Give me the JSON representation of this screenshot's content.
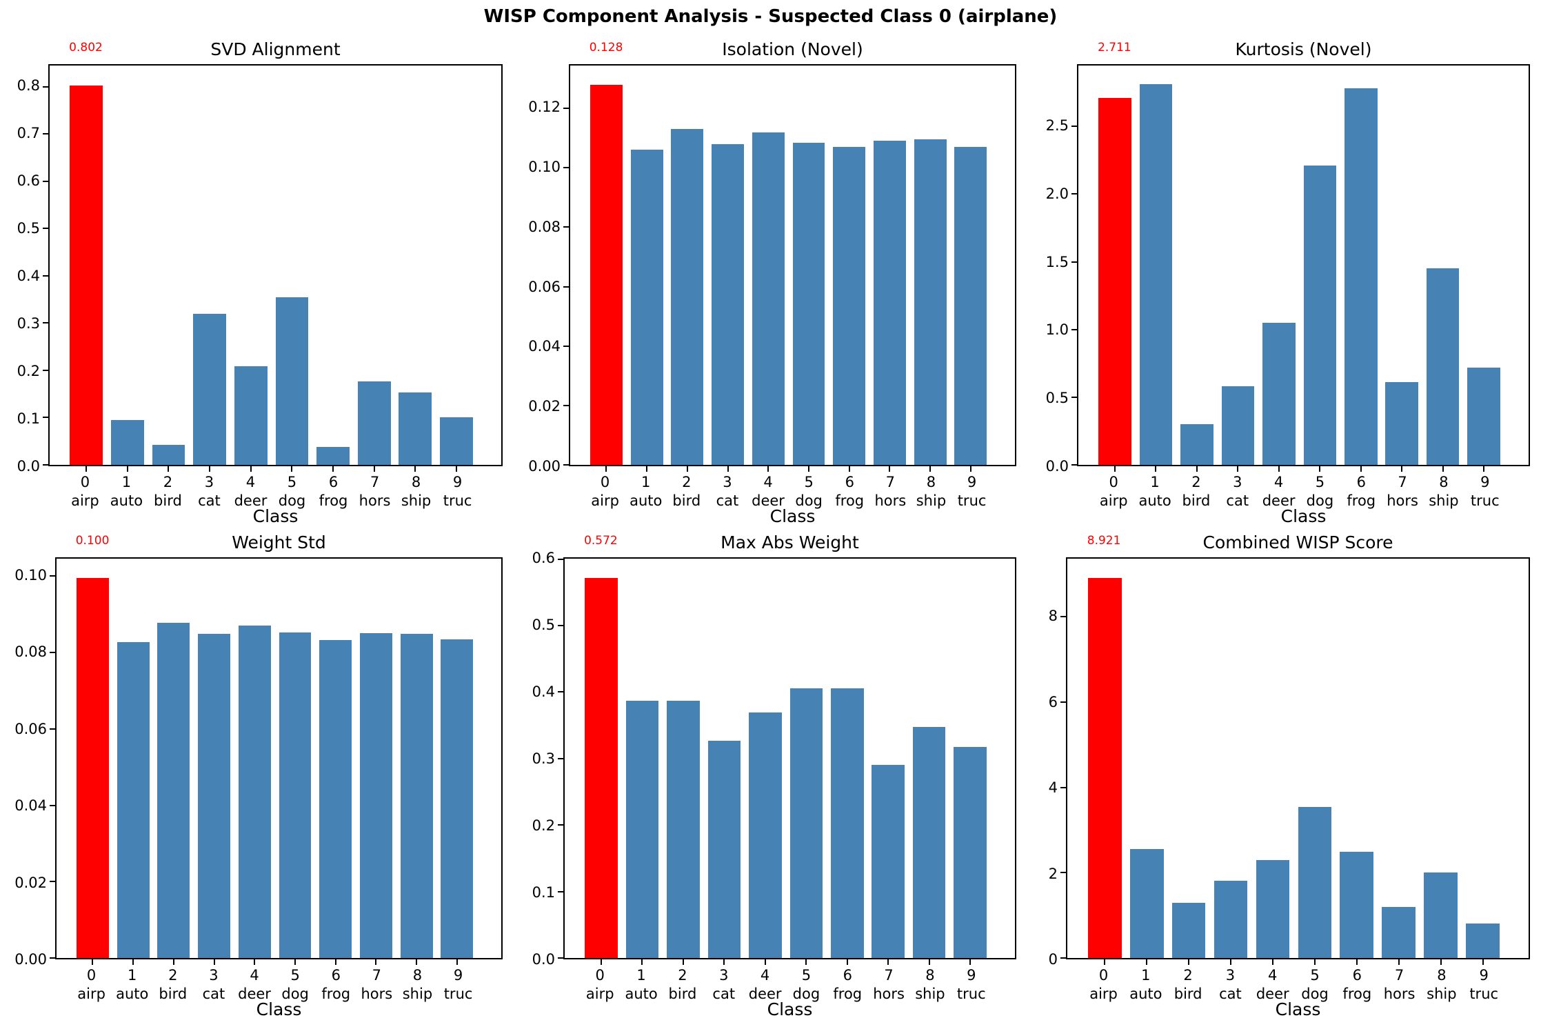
{
  "figure": {
    "title": "WISP Component Analysis - Suspected Class 0 (airplane)"
  },
  "colors": {
    "suspect_bar": "#ff0000",
    "normal_bar": "#4682b4",
    "annotation_text": "#ff0000",
    "axis": "#000000",
    "background": "#ffffff"
  },
  "chart_data": {
    "type": "bar",
    "grid": "2 rows x 3 columns",
    "xlabel": "Class",
    "categories_line1": [
      "0",
      "1",
      "2",
      "3",
      "4",
      "5",
      "6",
      "7",
      "8",
      "9"
    ],
    "categories_line2": [
      "airp",
      "auto",
      "bird",
      "cat",
      "deer",
      "dog",
      "frog",
      "hors",
      "ship",
      "truc"
    ],
    "highlight_index": 0,
    "highlight_color": "#ff0000",
    "bar_color": "#4682b4",
    "charts": [
      {
        "title": "SVD Alignment",
        "annotation": "0.802",
        "values": [
          0.802,
          0.095,
          0.043,
          0.32,
          0.209,
          0.354,
          0.038,
          0.177,
          0.153,
          0.1
        ],
        "ymax": 0.845,
        "ytick_values": [
          0.0,
          0.1,
          0.2,
          0.3,
          0.4,
          0.5,
          0.6,
          0.7,
          0.8
        ],
        "ytick_labels": [
          "0.0",
          "0.1",
          "0.2",
          "0.3",
          "0.4",
          "0.5",
          "0.6",
          "0.7",
          "0.8"
        ]
      },
      {
        "title": "Isolation (Novel)",
        "annotation": "0.128",
        "values": [
          0.128,
          0.106,
          0.113,
          0.108,
          0.112,
          0.1085,
          0.107,
          0.109,
          0.1095,
          0.107
        ],
        "ymax": 0.1344,
        "ytick_values": [
          0.0,
          0.02,
          0.04,
          0.06,
          0.08,
          0.1,
          0.12
        ],
        "ytick_labels": [
          "0.00",
          "0.02",
          "0.04",
          "0.06",
          "0.08",
          "0.10",
          "0.12"
        ]
      },
      {
        "title": "Kurtosis (Novel)",
        "annotation": "2.711",
        "values": [
          2.711,
          2.81,
          0.3,
          0.58,
          1.05,
          2.21,
          2.78,
          0.61,
          1.45,
          0.72
        ],
        "ymax": 2.95,
        "ytick_values": [
          0.0,
          0.5,
          1.0,
          1.5,
          2.0,
          2.5
        ],
        "ytick_labels": [
          "0.0",
          "0.5",
          "1.0",
          "1.5",
          "2.0",
          "2.5"
        ]
      },
      {
        "title": "Weight Std",
        "annotation": "0.100",
        "values": [
          0.0996,
          0.0827,
          0.0878,
          0.0849,
          0.0871,
          0.0853,
          0.0833,
          0.0851,
          0.0849,
          0.0835
        ],
        "ymax": 0.1046,
        "ytick_values": [
          0.0,
          0.02,
          0.04,
          0.06,
          0.08,
          0.1
        ],
        "ytick_labels": [
          "0.00",
          "0.02",
          "0.04",
          "0.06",
          "0.08",
          "0.10"
        ]
      },
      {
        "title": "Max Abs Weight",
        "annotation": "0.572",
        "values": [
          0.572,
          0.387,
          0.387,
          0.327,
          0.369,
          0.406,
          0.406,
          0.29,
          0.347,
          0.317
        ],
        "ymax": 0.6006,
        "ytick_values": [
          0.0,
          0.1,
          0.2,
          0.3,
          0.4,
          0.5,
          0.6
        ],
        "ytick_labels": [
          "0.0",
          "0.1",
          "0.2",
          "0.3",
          "0.4",
          "0.5",
          "0.6"
        ]
      },
      {
        "title": "Combined WISP Score",
        "annotation": "8.921",
        "values": [
          8.921,
          2.56,
          1.3,
          1.81,
          2.3,
          3.54,
          2.49,
          1.19,
          2.01,
          0.81
        ],
        "ymax": 9.367,
        "ytick_values": [
          0,
          2,
          4,
          6,
          8
        ],
        "ytick_labels": [
          "0",
          "2",
          "4",
          "6",
          "8"
        ]
      }
    ]
  }
}
